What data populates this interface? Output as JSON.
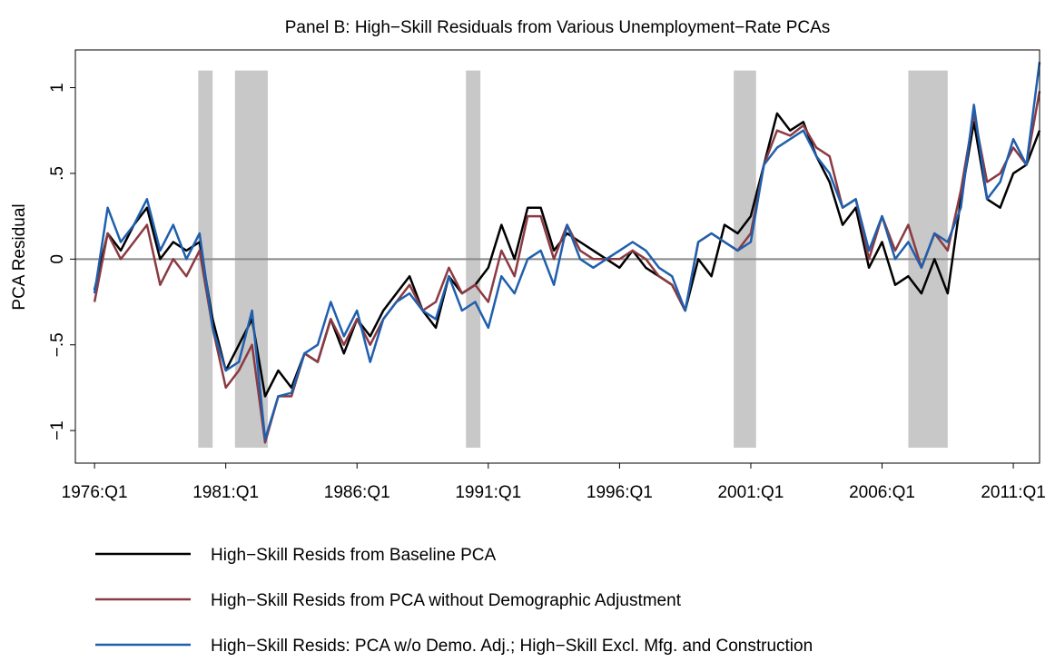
{
  "chart_data": {
    "type": "line",
    "title": "Panel B: High−Skill Residuals from Various Unemployment−Rate PCAs",
    "y_label": "PCA Residual",
    "x": [
      1976,
      1976.5,
      1977,
      1977.5,
      1978,
      1978.5,
      1979,
      1979.5,
      1980,
      1980.5,
      1981,
      1981.5,
      1982,
      1982.5,
      1983,
      1983.5,
      1984,
      1984.5,
      1985,
      1985.5,
      1986,
      1986.5,
      1987,
      1987.5,
      1988,
      1988.5,
      1989,
      1989.5,
      1990,
      1990.5,
      1991,
      1991.5,
      1992,
      1992.5,
      1993,
      1993.5,
      1994,
      1994.5,
      1995,
      1995.5,
      1996,
      1996.5,
      1997,
      1997.5,
      1998,
      1998.5,
      1999,
      1999.5,
      2000,
      2000.5,
      2001,
      2001.5,
      2002,
      2002.5,
      2003,
      2003.5,
      2004,
      2004.5,
      2005,
      2005.5,
      2006,
      2006.5,
      2007,
      2007.5,
      2008,
      2008.5,
      2009,
      2009.5,
      2010,
      2010.5,
      2011,
      2011.5,
      2012
    ],
    "series": [
      {
        "name": "High−Skill Resids from Baseline PCA",
        "color": "#000000",
        "values": [
          -0.18,
          0.15,
          0.05,
          0.2,
          0.3,
          0.0,
          0.1,
          0.05,
          0.1,
          -0.35,
          -0.65,
          -0.5,
          -0.35,
          -0.8,
          -0.65,
          -0.75,
          -0.55,
          -0.6,
          -0.35,
          -0.55,
          -0.35,
          -0.45,
          -0.3,
          -0.2,
          -0.1,
          -0.3,
          -0.4,
          -0.1,
          -0.2,
          -0.15,
          -0.05,
          0.2,
          0.0,
          0.3,
          0.3,
          0.05,
          0.15,
          0.1,
          0.05,
          0.0,
          -0.05,
          0.05,
          -0.05,
          -0.1,
          -0.15,
          -0.3,
          0.0,
          -0.1,
          0.2,
          0.15,
          0.25,
          0.55,
          0.85,
          0.75,
          0.8,
          0.6,
          0.45,
          0.2,
          0.3,
          -0.05,
          0.1,
          -0.15,
          -0.1,
          -0.2,
          0.0,
          -0.2,
          0.35,
          0.8,
          0.35,
          0.3,
          0.5,
          0.55,
          0.75
        ]
      },
      {
        "name": "High−Skill Resids from PCA without Demographic Adjustment",
        "color": "#8b3a42",
        "values": [
          -0.25,
          0.15,
          0.0,
          0.1,
          0.2,
          -0.15,
          0.0,
          -0.1,
          0.05,
          -0.4,
          -0.75,
          -0.65,
          -0.5,
          -1.07,
          -0.8,
          -0.8,
          -0.55,
          -0.6,
          -0.35,
          -0.5,
          -0.35,
          -0.5,
          -0.35,
          -0.25,
          -0.15,
          -0.3,
          -0.25,
          -0.05,
          -0.2,
          -0.15,
          -0.25,
          0.05,
          -0.1,
          0.25,
          0.25,
          0.0,
          0.2,
          0.05,
          0.0,
          0.0,
          0.0,
          0.05,
          0.0,
          -0.1,
          -0.15,
          -0.3,
          0.1,
          0.15,
          0.1,
          0.05,
          0.15,
          0.55,
          0.75,
          0.72,
          0.78,
          0.65,
          0.6,
          0.3,
          0.35,
          0.0,
          0.25,
          0.05,
          0.2,
          -0.05,
          0.15,
          0.05,
          0.4,
          0.85,
          0.45,
          0.5,
          0.65,
          0.55,
          0.98
        ]
      },
      {
        "name": "High−Skill Resids: PCA w/o Demo. Adj.; High−Skill Excl. Mfg. and Construction",
        "color": "#1f5fad",
        "values": [
          -0.2,
          0.3,
          0.1,
          0.2,
          0.35,
          0.05,
          0.2,
          0.0,
          0.15,
          -0.4,
          -0.65,
          -0.6,
          -0.3,
          -1.05,
          -0.8,
          -0.78,
          -0.55,
          -0.5,
          -0.25,
          -0.45,
          -0.3,
          -0.6,
          -0.35,
          -0.25,
          -0.2,
          -0.3,
          -0.35,
          -0.1,
          -0.3,
          -0.25,
          -0.4,
          -0.1,
          -0.2,
          0.0,
          0.05,
          -0.15,
          0.2,
          0.0,
          -0.05,
          0.0,
          0.05,
          0.1,
          0.05,
          -0.05,
          -0.1,
          -0.3,
          0.1,
          0.15,
          0.1,
          0.05,
          0.1,
          0.55,
          0.65,
          0.7,
          0.75,
          0.6,
          0.5,
          0.3,
          0.35,
          0.05,
          0.25,
          0.0,
          0.1,
          -0.05,
          0.15,
          0.1,
          0.3,
          0.9,
          0.35,
          0.45,
          0.7,
          0.55,
          1.15
        ]
      }
    ],
    "xlim": [
      1975.27,
      2012.0
    ],
    "ylim": [
      -1.19,
      1.22
    ],
    "xticks": [
      {
        "value": 1976,
        "label": "1976:Q1"
      },
      {
        "value": 1981,
        "label": "1981:Q1"
      },
      {
        "value": 1986,
        "label": "1986:Q1"
      },
      {
        "value": 1991,
        "label": "1991:Q1"
      },
      {
        "value": 1996,
        "label": "1996:Q1"
      },
      {
        "value": 2001,
        "label": "2001:Q1"
      },
      {
        "value": 2006,
        "label": "2006:Q1"
      },
      {
        "value": 2011,
        "label": "2011:Q1"
      }
    ],
    "yticks": [
      {
        "value": -1,
        "label": "−1"
      },
      {
        "value": -0.5,
        "label": "−.5"
      },
      0,
      {
        "value": 0.5,
        "label": ".5"
      },
      1
    ],
    "bands": [
      [
        1979.95,
        1980.5
      ],
      [
        1981.35,
        1982.6
      ],
      [
        1990.15,
        1990.7
      ],
      [
        2000.35,
        2001.2
      ],
      [
        2007.0,
        2008.5
      ]
    ],
    "band_ylim": [
      -1.1,
      1.1
    ],
    "band_color": "#c8c8c8",
    "hline": 0,
    "hline_color": "#888888"
  }
}
